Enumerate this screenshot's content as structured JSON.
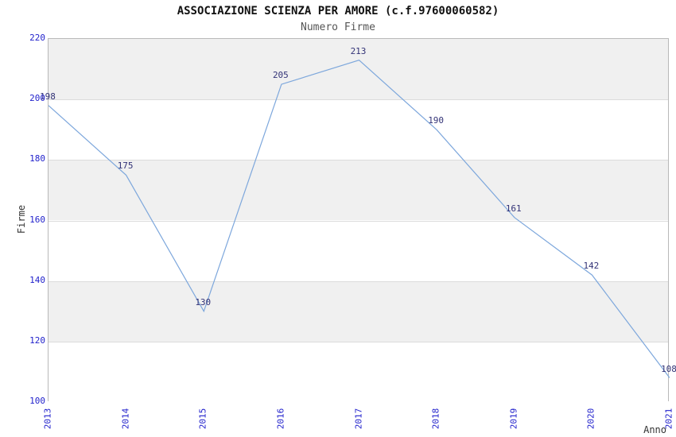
{
  "chart_data": {
    "type": "line",
    "title": "ASSOCIAZIONE SCIENZA PER AMORE (c.f.97600060582)",
    "subtitle": "Numero Firme",
    "xlabel": "Anno",
    "ylabel": "Firme",
    "categories": [
      "2013",
      "2014",
      "2015",
      "2016",
      "2017",
      "2018",
      "2019",
      "2020",
      "2021"
    ],
    "series": [
      {
        "name": "Numero Firme",
        "values": [
          198,
          175,
          130,
          205,
          213,
          190,
          161,
          142,
          108
        ]
      }
    ],
    "ylim": [
      100,
      220
    ],
    "yticks": [
      100,
      120,
      140,
      160,
      180,
      200,
      220
    ],
    "grid": "horizontal-bands-alternating",
    "legend": "none",
    "colors": {
      "line": "#7da7dc",
      "band": "#f0f0f0",
      "band_alt": "#ffffff",
      "gridline": "#dcdcdc",
      "plot_border": "#b9b9b9",
      "tick_label": "#2222cc",
      "data_label": "#333377",
      "title": "#111111",
      "subtitle": "#555555",
      "axis_title": "#333333"
    }
  }
}
